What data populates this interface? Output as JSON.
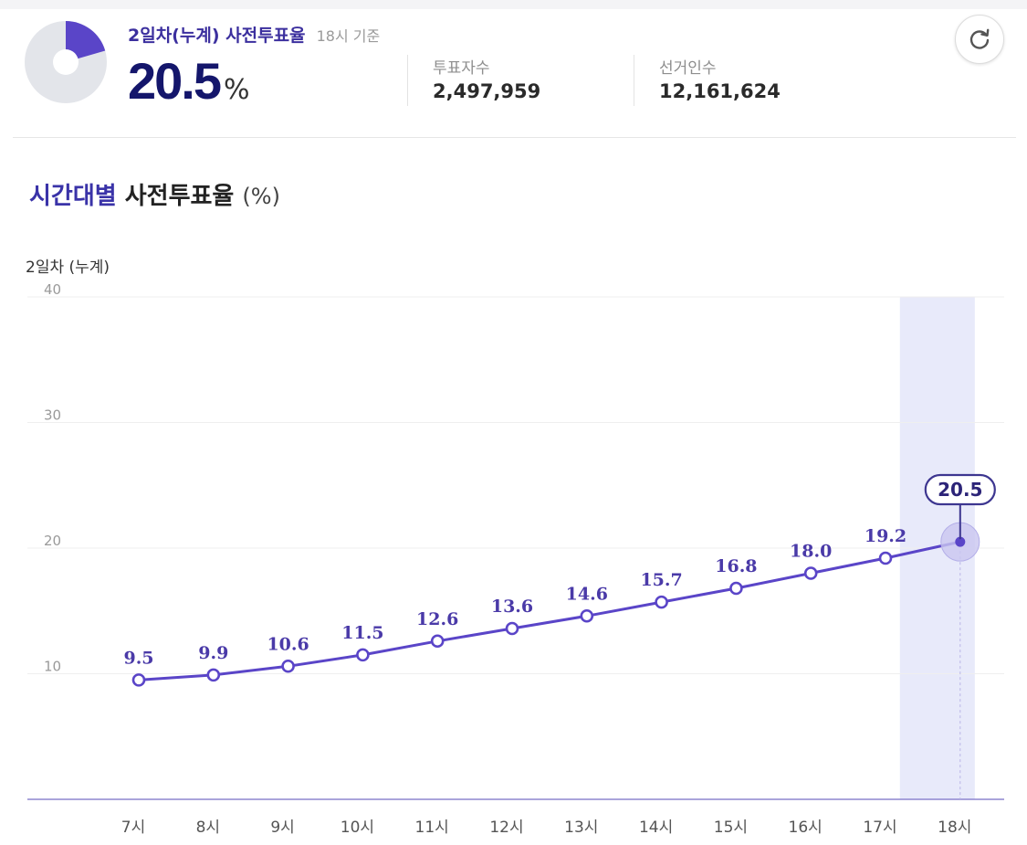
{
  "summary": {
    "title": "2일차(누계) 사전투표율",
    "basis": "18시 기준",
    "rate_value": "20.5",
    "rate_unit": "%",
    "rate_fraction": 0.205,
    "stats": [
      {
        "label": "투표자수",
        "value": "2,497,959"
      },
      {
        "label": "선거인수",
        "value": "12,161,624"
      }
    ]
  },
  "section": {
    "title_accent": "시간대별",
    "title_rest": "사전투표율",
    "title_unit": "(%)"
  },
  "chart_data": {
    "type": "line",
    "subtitle": "2일차 (누계)",
    "categories": [
      "7시",
      "8시",
      "9시",
      "10시",
      "11시",
      "12시",
      "13시",
      "14시",
      "15시",
      "16시",
      "17시",
      "18시"
    ],
    "series": [
      {
        "values": [
          9.5,
          9.9,
          10.6,
          11.5,
          12.6,
          13.6,
          14.6,
          15.7,
          16.8,
          18.0,
          19.2,
          20.5
        ]
      }
    ],
    "data_labels": [
      "9.5",
      "9.9",
      "10.6",
      "11.5",
      "12.6",
      "13.6",
      "14.6",
      "15.7",
      "16.8",
      "18.0",
      "19.2",
      "20.5"
    ],
    "yticks": [
      "10",
      "20",
      "30",
      "40"
    ],
    "ylim": [
      0,
      40
    ],
    "grid": true,
    "highlight_category": "18시"
  },
  "colors": {
    "accent": "#5a45c8",
    "pie_rest": "#e3e5ea",
    "highlight_band": "#e8eafa",
    "title_dark": "#14166b"
  },
  "icons": {
    "refresh": "refresh-icon",
    "pie": "turnout-pie-icon"
  }
}
